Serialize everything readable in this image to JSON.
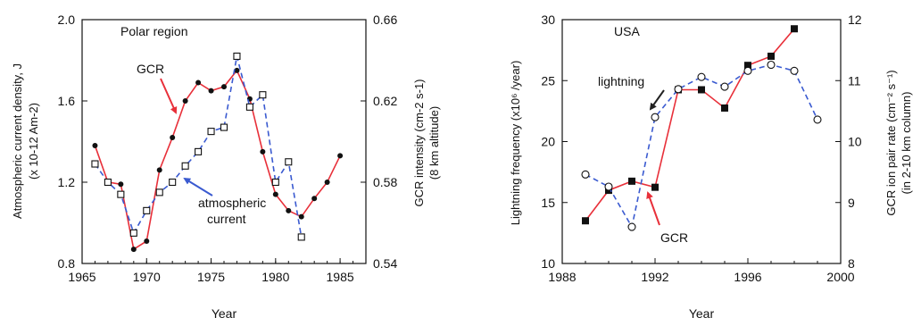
{
  "chart_data": [
    {
      "type": "line",
      "title": "Polar region",
      "xlabel": "Year",
      "ylabel_left_line1": "Atmospheric current density, J",
      "ylabel_left_line2": "(x 10-12 Am-2)",
      "ylabel_right_line1": "GCR intensity (cm-2 s-1)",
      "ylabel_right_line2": "(8 km altitude)",
      "xlim": [
        1965,
        1987
      ],
      "ylim_left": [
        0.8,
        2.0
      ],
      "ylim_right": [
        0.54,
        0.66
      ],
      "xticks": [
        "1965",
        "1970",
        "1975",
        "1980",
        "1985"
      ],
      "yticks_left": [
        "0.8",
        "1.2",
        "1.6",
        "2.0"
      ],
      "yticks_right": [
        "0.54",
        "0.58",
        "0.62",
        "0.66"
      ],
      "annotations": {
        "gcr": "GCR",
        "atm_line1": "atmospheric",
        "atm_line2": "current"
      },
      "series": [
        {
          "name": "GCR",
          "axis": "right",
          "color": "#e8303a",
          "marker": "filled-circle",
          "x": [
            1966,
            1967,
            1968,
            1969,
            1970,
            1971,
            1972,
            1973,
            1974,
            1975,
            1976,
            1977,
            1978,
            1979,
            1980,
            1981,
            1982,
            1983,
            1984,
            1985
          ],
          "y": [
            0.598,
            0.58,
            0.579,
            0.547,
            0.551,
            0.586,
            0.602,
            0.62,
            0.629,
            0.625,
            0.627,
            0.635,
            0.621,
            0.595,
            0.574,
            0.566,
            0.563,
            0.572,
            0.58,
            0.593
          ]
        },
        {
          "name": "atmospheric current",
          "axis": "left",
          "color": "#3a5ad0",
          "marker": "open-square",
          "x": [
            1966,
            1967,
            1968,
            1969,
            1970,
            1971,
            1972,
            1973,
            1974,
            1975,
            1976,
            1977,
            1978,
            1979,
            1980,
            1981,
            1982
          ],
          "y": [
            1.29,
            1.2,
            1.14,
            0.95,
            1.06,
            1.15,
            1.2,
            1.28,
            1.35,
            1.45,
            1.47,
            1.82,
            1.57,
            1.63,
            1.2,
            1.3,
            0.93
          ]
        }
      ]
    },
    {
      "type": "line",
      "title": "USA",
      "xlabel": "Year",
      "ylabel_left": "Lightning frequency (x10⁶ /year)",
      "ylabel_right_line1": "GCR ion pair rate (cm⁻² s⁻¹)",
      "ylabel_right_line2": "(in 2-10 km column)",
      "xlim": [
        1988,
        2000
      ],
      "ylim_left": [
        10,
        30
      ],
      "ylim_right": [
        8,
        12
      ],
      "xticks": [
        "1988",
        "1992",
        "1996",
        "2000"
      ],
      "yticks_left": [
        "10",
        "15",
        "20",
        "25",
        "30"
      ],
      "yticks_right": [
        "8",
        "9",
        "10",
        "11",
        "12"
      ],
      "annotations": {
        "lightning": "lightning",
        "gcr": "GCR"
      },
      "series": [
        {
          "name": "GCR",
          "axis": "right",
          "color": "#e8303a",
          "marker": "filled-square",
          "x": [
            1989,
            1990,
            1991,
            1992,
            1993,
            1994,
            1995,
            1996,
            1997,
            1998
          ],
          "y": [
            8.7,
            9.2,
            9.35,
            9.25,
            10.85,
            10.85,
            10.55,
            11.25,
            11.4,
            11.85
          ]
        },
        {
          "name": "lightning",
          "axis": "left",
          "color": "#3a5ad0",
          "marker": "open-circle",
          "x": [
            1989,
            1990,
            1991,
            1992,
            1993,
            1994,
            1995,
            1996,
            1997,
            1998,
            1999
          ],
          "y": [
            17.3,
            16.3,
            13.0,
            22.0,
            24.3,
            25.3,
            24.5,
            25.8,
            26.3,
            25.8,
            21.8
          ]
        }
      ]
    }
  ]
}
